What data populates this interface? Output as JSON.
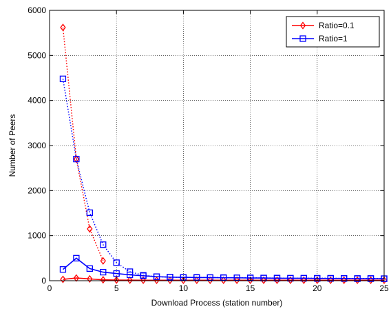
{
  "chart_data": {
    "type": "line",
    "title": "",
    "xlabel": "Download Process (station number)",
    "ylabel": "Number of Peers",
    "xlim": [
      0,
      25
    ],
    "ylim": [
      0,
      6000
    ],
    "xticks": [
      0,
      5,
      10,
      15,
      20,
      25
    ],
    "yticks": [
      0,
      1000,
      2000,
      3000,
      4000,
      5000,
      6000
    ],
    "grid": true,
    "legend_position": "top-right",
    "x": [
      1,
      2,
      3,
      4,
      5,
      6,
      7,
      8,
      9,
      10,
      11,
      12,
      13,
      14,
      15,
      16,
      17,
      18,
      19,
      20,
      21,
      22,
      23,
      24,
      25
    ],
    "series": [
      {
        "name": "Ratio=0.1",
        "color": "#ff0000",
        "marker": "diamond",
        "solid_values": [
          30,
          60,
          40,
          20,
          15,
          12,
          10,
          10,
          10,
          10,
          10,
          10,
          10,
          10,
          10,
          10,
          10,
          10,
          10,
          10,
          10,
          10,
          10,
          10,
          10
        ],
        "dotted_values": [
          5620,
          2700,
          1150,
          440,
          null,
          null,
          null,
          null,
          null,
          null,
          null,
          null,
          null,
          null,
          null,
          null,
          null,
          null,
          null,
          null,
          null,
          null,
          null,
          null,
          null
        ]
      },
      {
        "name": "Ratio=1",
        "color": "#0000ff",
        "marker": "square",
        "solid_values": [
          250,
          500,
          270,
          190,
          160,
          130,
          110,
          90,
          80,
          75,
          70,
          70,
          65,
          65,
          60,
          60,
          55,
          55,
          55,
          50,
          50,
          50,
          45,
          45,
          45
        ],
        "dotted_values": [
          4480,
          2700,
          1510,
          800,
          400,
          200,
          120,
          90,
          80,
          75,
          75,
          70,
          70,
          65,
          65,
          60,
          60,
          55,
          55,
          55,
          55,
          50,
          50,
          50,
          45
        ]
      }
    ]
  }
}
